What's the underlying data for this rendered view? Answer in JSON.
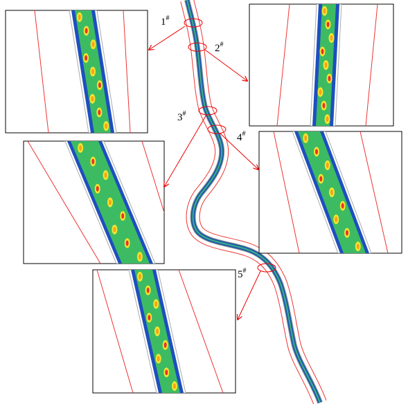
{
  "sites": [
    {
      "label": "1",
      "mark": "#"
    },
    {
      "label": "2",
      "mark": "#"
    },
    {
      "label": "3",
      "mark": "#"
    },
    {
      "label": "4",
      "mark": "#"
    },
    {
      "label": "5",
      "mark": "#"
    }
  ]
}
